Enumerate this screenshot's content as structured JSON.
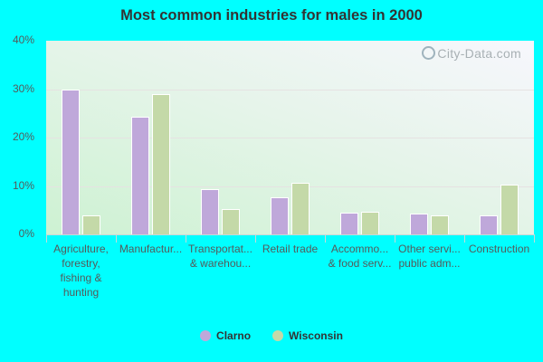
{
  "title": "Most common industries for males in 2000",
  "watermark": "City-Data.com",
  "colors": {
    "clarno": "#bfa8da",
    "wisconsin": "#c4d9a8",
    "background": "#00ffff"
  },
  "legend": [
    {
      "label": "Clarno",
      "color": "#bfa8da"
    },
    {
      "label": "Wisconsin",
      "color": "#c4d9a8"
    }
  ],
  "y_ticks": [
    "0%",
    "10%",
    "20%",
    "30%",
    "40%"
  ],
  "chart_data": {
    "type": "bar",
    "title": "Most common industries for males in 2000",
    "xlabel": "",
    "ylabel": "",
    "ylim": [
      0,
      40
    ],
    "y_tick_labels": [
      "0%",
      "10%",
      "20%",
      "30%",
      "40%"
    ],
    "grid": true,
    "legend_position": "bottom",
    "categories": [
      "Agriculture, forestry, fishing & hunting",
      "Manufactur...",
      "Transportat... & warehou...",
      "Retail trade",
      "Accommo... & food serv...",
      "Other servi... public adm...",
      "Construction"
    ],
    "category_display": [
      "Agriculture,\nforestry,\nfishing &\nhunting",
      "Manufactur...",
      "Transportat...\n& warehou...",
      "Retail trade",
      "Accommo...\n& food serv...",
      "Other servi...\npublic adm...",
      "Construction"
    ],
    "series": [
      {
        "name": "Clarno",
        "color": "#bfa8da",
        "values": [
          30.0,
          24.3,
          9.4,
          7.7,
          4.5,
          4.3,
          3.9
        ]
      },
      {
        "name": "Wisconsin",
        "color": "#c4d9a8",
        "values": [
          3.9,
          29.0,
          5.3,
          10.6,
          4.7,
          3.9,
          10.2
        ]
      }
    ]
  }
}
